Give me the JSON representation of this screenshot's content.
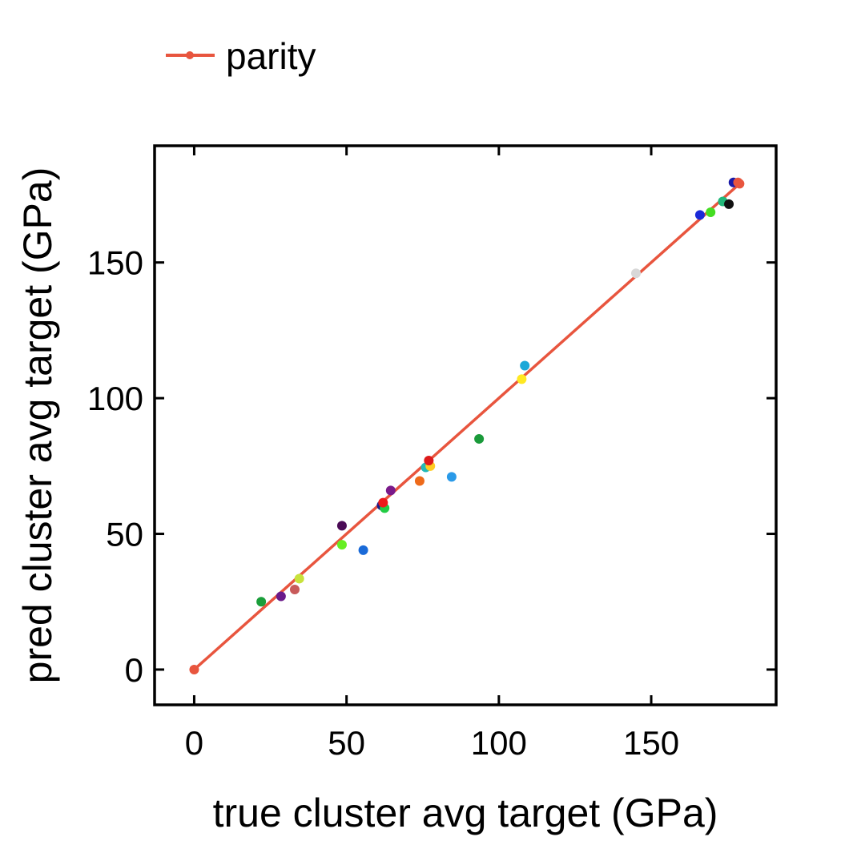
{
  "chart_data": {
    "type": "scatter",
    "title": "",
    "xlabel": "true cluster avg target (GPa)",
    "ylabel": "pred cluster avg target (GPa)",
    "xlim": [
      -13,
      191
    ],
    "ylim": [
      -13,
      193
    ],
    "xticks": [
      0,
      50,
      100,
      150
    ],
    "yticks": [
      0,
      50,
      100,
      150
    ],
    "xtick_labels": [
      "0",
      "50",
      "100",
      "150"
    ],
    "ytick_labels": [
      "0",
      "50",
      "100",
      "150"
    ],
    "grid": false,
    "legend_position": "top-left, outside plot",
    "legend": [
      {
        "name": "parity",
        "color": "#e8553e"
      }
    ],
    "parity_line": {
      "name": "parity",
      "color": "#e8553e",
      "x": [
        0,
        179
      ],
      "y": [
        0,
        179
      ]
    },
    "points": [
      {
        "x": 22,
        "y": 25,
        "color": "#1a9e3a"
      },
      {
        "x": 28.5,
        "y": 27,
        "color": "#6a1a8a"
      },
      {
        "x": 33,
        "y": 29.5,
        "color": "#c85a5a"
      },
      {
        "x": 34.5,
        "y": 33.5,
        "color": "#c8e23c"
      },
      {
        "x": 48.5,
        "y": 53,
        "color": "#4a0a55"
      },
      {
        "x": 48.5,
        "y": 46,
        "color": "#66ee22"
      },
      {
        "x": 55.5,
        "y": 44,
        "color": "#1a6ad8"
      },
      {
        "x": 61.5,
        "y": 60.5,
        "color": "#1a1a8a"
      },
      {
        "x": 62.5,
        "y": 59.5,
        "color": "#22cc44"
      },
      {
        "x": 62,
        "y": 61.5,
        "color": "#ee1a1a"
      },
      {
        "x": 64.5,
        "y": 66,
        "color": "#7a1a8a"
      },
      {
        "x": 74,
        "y": 69.5,
        "color": "#ee6a1a"
      },
      {
        "x": 76,
        "y": 74.5,
        "color": "#22b8b8"
      },
      {
        "x": 77.5,
        "y": 75,
        "color": "#ffcc22"
      },
      {
        "x": 77,
        "y": 77,
        "color": "#dd1a1a"
      },
      {
        "x": 84.5,
        "y": 71,
        "color": "#2a9ae8"
      },
      {
        "x": 93.5,
        "y": 85,
        "color": "#1a9a3a"
      },
      {
        "x": 107.5,
        "y": 107,
        "color": "#ffe822"
      },
      {
        "x": 108.5,
        "y": 112,
        "color": "#1aa8d8"
      },
      {
        "x": 145,
        "y": 146,
        "color": "#d8d8d8"
      },
      {
        "x": 166,
        "y": 167.5,
        "color": "#1a2ad8"
      },
      {
        "x": 169.5,
        "y": 168.5,
        "color": "#44dd22"
      },
      {
        "x": 173.5,
        "y": 172.5,
        "color": "#22b87a"
      },
      {
        "x": 175.5,
        "y": 171.5,
        "color": "#111111"
      },
      {
        "x": 177,
        "y": 179.5,
        "color": "#1a1aa8"
      },
      {
        "x": 178.5,
        "y": 179.5,
        "color": "#e8553e"
      }
    ]
  }
}
